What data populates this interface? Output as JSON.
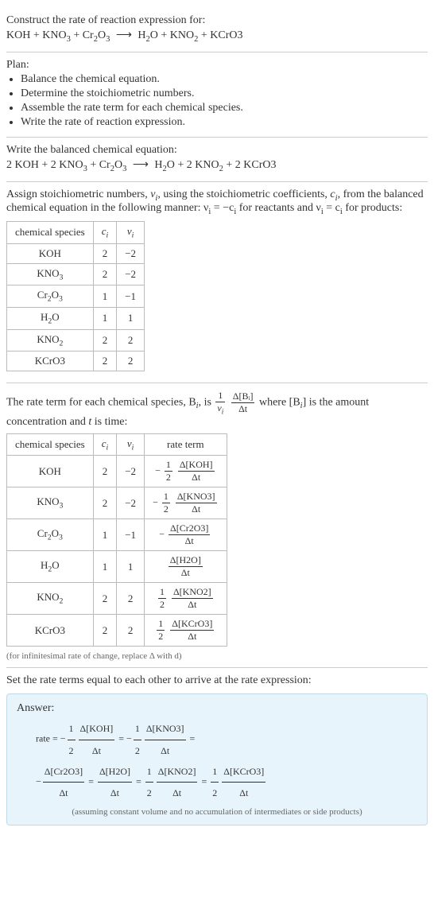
{
  "prompt": {
    "line1": "Construct the rate of reaction expression for:",
    "equation_lhs": "KOH + KNO₃ + Cr₂O₃",
    "equation_rhs": "H₂O + KNO₂ + KCrO3"
  },
  "plan": {
    "title": "Plan:",
    "items": [
      "Balance the chemical equation.",
      "Determine the stoichiometric numbers.",
      "Assemble the rate term for each chemical species.",
      "Write the rate of reaction expression."
    ]
  },
  "balanced": {
    "intro": "Write the balanced chemical equation:",
    "lhs": "2 KOH + 2 KNO₃ + Cr₂O₃",
    "rhs": "H₂O + 2 KNO₂ + 2 KCrO3"
  },
  "stoich_assign": {
    "intro_a": "Assign stoichiometric numbers, ",
    "nu_sym": "ν",
    "intro_b": ", using the stoichiometric coefficients, ",
    "c_sym": "c",
    "intro_c": ", from the balanced chemical equation in the following manner: ν",
    "intro_d": " = −c",
    "intro_e": " for reactants and ν",
    "intro_f": " = c",
    "intro_g": " for products:"
  },
  "stoich_table": {
    "headers": [
      "chemical species",
      "cᵢ",
      "νᵢ"
    ],
    "rows": [
      {
        "species": "KOH",
        "c": "2",
        "nu": "−2"
      },
      {
        "species": "KNO₃",
        "c": "2",
        "nu": "−2"
      },
      {
        "species": "Cr₂O₃",
        "c": "1",
        "nu": "−1"
      },
      {
        "species": "H₂O",
        "c": "1",
        "nu": "1"
      },
      {
        "species": "KNO₂",
        "c": "2",
        "nu": "2"
      },
      {
        "species": "KCrO3",
        "c": "2",
        "nu": "2"
      }
    ]
  },
  "rate_term_intro": {
    "a": "The rate term for each chemical species, B",
    "b": ", is ",
    "frac_outer_num": "1",
    "frac_outer_den": "νᵢ",
    "frac_inner_num": "Δ[Bᵢ]",
    "frac_inner_den": "Δt",
    "c": " where [B",
    "d": "] is the amount concentration and ",
    "t_sym": "t",
    "e": " is time:"
  },
  "rate_table": {
    "headers": [
      "chemical species",
      "cᵢ",
      "νᵢ",
      "rate term"
    ],
    "rows": [
      {
        "species": "KOH",
        "c": "2",
        "nu": "−2",
        "neg": "−",
        "coef_num": "1",
        "coef_den": "2",
        "d_num": "Δ[KOH]",
        "d_den": "Δt"
      },
      {
        "species": "KNO₃",
        "c": "2",
        "nu": "−2",
        "neg": "−",
        "coef_num": "1",
        "coef_den": "2",
        "d_num": "Δ[KNO3]",
        "d_den": "Δt"
      },
      {
        "species": "Cr₂O₃",
        "c": "1",
        "nu": "−1",
        "neg": "−",
        "coef_num": "",
        "coef_den": "",
        "d_num": "Δ[Cr2O3]",
        "d_den": "Δt"
      },
      {
        "species": "H₂O",
        "c": "1",
        "nu": "1",
        "neg": "",
        "coef_num": "",
        "coef_den": "",
        "d_num": "Δ[H2O]",
        "d_den": "Δt"
      },
      {
        "species": "KNO₂",
        "c": "2",
        "nu": "2",
        "neg": "",
        "coef_num": "1",
        "coef_den": "2",
        "d_num": "Δ[KNO2]",
        "d_den": "Δt"
      },
      {
        "species": "KCrO3",
        "c": "2",
        "nu": "2",
        "neg": "",
        "coef_num": "1",
        "coef_den": "2",
        "d_num": "Δ[KCrO3]",
        "d_den": "Δt"
      }
    ],
    "footnote": "(for infinitesimal rate of change, replace Δ with d)"
  },
  "final": {
    "intro": "Set the rate terms equal to each other to arrive at the rate expression:",
    "answer_title": "Answer:",
    "rate_label": "rate = ",
    "terms": [
      {
        "neg": "−",
        "cn": "1",
        "cd": "2",
        "dn": "Δ[KOH]",
        "dd": "Δt"
      },
      {
        "neg": "−",
        "cn": "1",
        "cd": "2",
        "dn": "Δ[KNO3]",
        "dd": "Δt"
      },
      {
        "neg": "−",
        "cn": "",
        "cd": "",
        "dn": "Δ[Cr2O3]",
        "dd": "Δt"
      },
      {
        "neg": "",
        "cn": "",
        "cd": "",
        "dn": "Δ[H2O]",
        "dd": "Δt"
      },
      {
        "neg": "",
        "cn": "1",
        "cd": "2",
        "dn": "Δ[KNO2]",
        "dd": "Δt"
      },
      {
        "neg": "",
        "cn": "1",
        "cd": "2",
        "dn": "Δ[KCrO3]",
        "dd": "Δt"
      }
    ],
    "eq_sep": " = ",
    "assumption": "(assuming constant volume and no accumulation of intermediates or side products)"
  },
  "colors": {
    "border": "#cccccc",
    "table_border": "#bbbbbb",
    "answer_bg": "#e8f4fb",
    "answer_border": "#bcdceb",
    "text": "#333333",
    "note": "#666666"
  }
}
